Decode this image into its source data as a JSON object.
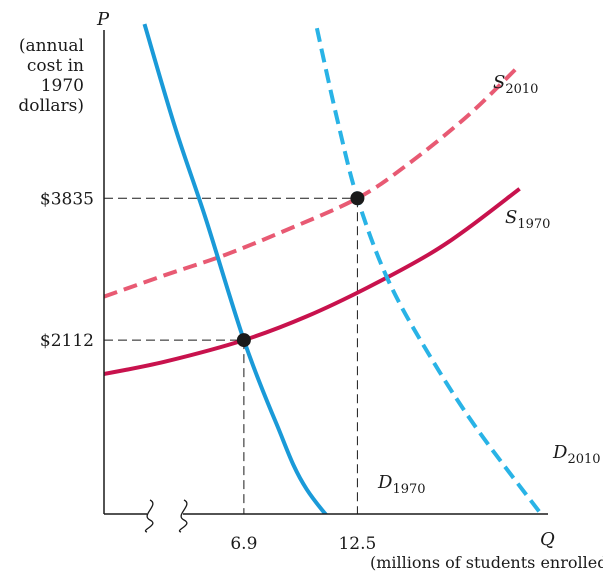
{
  "chart_data": {
    "type": "line",
    "title": "",
    "x_axis": {
      "symbol": "Q",
      "label": "(millions of students enrolled)",
      "ticks": [
        6.9,
        12.5
      ],
      "tick_labels": [
        "6.9",
        "12.5"
      ],
      "axis_break": true,
      "range": [
        0,
        22
      ]
    },
    "y_axis": {
      "symbol": "P",
      "label_lines": [
        "(annual",
        "cost in",
        "1970",
        "dollars)"
      ],
      "ticks": [
        2112,
        3835
      ],
      "tick_labels": [
        "$2112",
        "$3835"
      ],
      "range": [
        0,
        6000
      ]
    },
    "grid": false,
    "series": [
      {
        "label": "S",
        "subscript": "1970",
        "style": "solid",
        "color": "#c8124d",
        "points": [
          [
            0,
            1700
          ],
          [
            3,
            1850
          ],
          [
            6.9,
            2112
          ],
          [
            10,
            2400
          ],
          [
            13,
            2750
          ],
          [
            16,
            3150
          ],
          [
            18,
            3480
          ],
          [
            20.5,
            3950
          ]
        ]
      },
      {
        "label": "S",
        "subscript": "2010",
        "style": "dashed",
        "color": "#e85a73",
        "points": [
          [
            0,
            2640
          ],
          [
            3,
            2900
          ],
          [
            6,
            3150
          ],
          [
            9,
            3450
          ],
          [
            12.5,
            3835
          ],
          [
            15,
            4250
          ],
          [
            18,
            4850
          ],
          [
            20.5,
            5450
          ]
        ]
      },
      {
        "label": "D",
        "subscript": "1970",
        "style": "solid",
        "color": "#1a9ad8",
        "points": [
          [
            2,
            5950
          ],
          [
            3.5,
            4700
          ],
          [
            5,
            3600
          ],
          [
            6.9,
            2112
          ],
          [
            8.5,
            1100
          ],
          [
            10,
            300
          ],
          [
            12.7,
            -500
          ]
        ]
      },
      {
        "label": "D",
        "subscript": "2010",
        "style": "dashed",
        "color": "#29b3e6",
        "points": [
          [
            10.5,
            5900
          ],
          [
            11.5,
            4800
          ],
          [
            12.5,
            3835
          ],
          [
            14,
            2850
          ],
          [
            16,
            1950
          ],
          [
            18.5,
            1000
          ],
          [
            22.5,
            -300
          ]
        ]
      }
    ],
    "equilibria": [
      {
        "x": 6.9,
        "y": 2112
      },
      {
        "x": 12.5,
        "y": 3835
      }
    ],
    "colors": {
      "axis": "#1a1a1a",
      "guide": "#1a1a1a",
      "point": "#1a1a1a"
    }
  }
}
